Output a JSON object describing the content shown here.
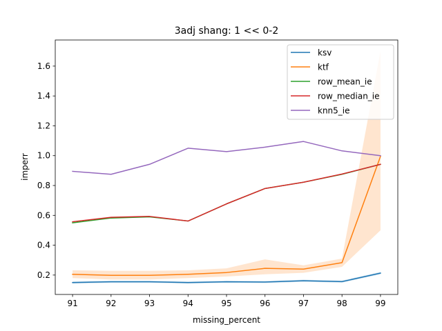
{
  "chart_data": {
    "type": "line",
    "title": "3adj shang: 1 << 0-2",
    "xlabel": "missing_percent",
    "ylabel": "imperr",
    "x": [
      91,
      92,
      93,
      94,
      95,
      96,
      97,
      98,
      99
    ],
    "xlim": [
      90.55,
      99.45
    ],
    "ylim": [
      0.07,
      1.775
    ],
    "xticks": [
      91,
      92,
      93,
      94,
      95,
      96,
      97,
      98,
      99
    ],
    "yticks": [
      0.2,
      0.4,
      0.6,
      0.8,
      1.0,
      1.2,
      1.4,
      1.6
    ],
    "ytick_labels": [
      "0.2",
      "0.4",
      "0.6",
      "0.8",
      "1.0",
      "1.2",
      "1.4",
      "1.6"
    ],
    "legend_position": "top-right",
    "series": [
      {
        "name": "ksv",
        "color": "#1f77b4",
        "values": [
          0.15,
          0.155,
          0.155,
          0.15,
          0.155,
          0.153,
          0.162,
          0.156,
          0.213
        ],
        "lower": [
          0.142,
          0.148,
          0.148,
          0.143,
          0.148,
          0.146,
          0.155,
          0.149,
          0.205
        ],
        "upper": [
          0.158,
          0.162,
          0.162,
          0.157,
          0.162,
          0.16,
          0.169,
          0.163,
          0.221
        ]
      },
      {
        "name": "ktf",
        "color": "#ff7f0e",
        "values": [
          0.205,
          0.198,
          0.198,
          0.205,
          0.217,
          0.245,
          0.24,
          0.283,
          0.995
        ],
        "lower": [
          0.18,
          0.17,
          0.17,
          0.18,
          0.19,
          0.205,
          0.215,
          0.255,
          0.5
        ],
        "upper": [
          0.232,
          0.228,
          0.228,
          0.232,
          0.245,
          0.305,
          0.265,
          0.31,
          1.7
        ]
      },
      {
        "name": "row_mean_ie",
        "color": "#2ca02c",
        "values": [
          0.55,
          0.582,
          0.59,
          0.562,
          0.677,
          0.78,
          0.822,
          0.875,
          0.942
        ]
      },
      {
        "name": "row_median_ie",
        "color": "#d62728",
        "values": [
          0.557,
          0.587,
          0.593,
          0.562,
          0.677,
          0.78,
          0.822,
          0.877,
          0.942
        ]
      },
      {
        "name": "knn5_ie",
        "color": "#9467bd",
        "values": [
          0.895,
          0.875,
          0.942,
          1.05,
          1.027,
          1.057,
          1.095,
          1.032,
          1.0
        ]
      }
    ]
  }
}
